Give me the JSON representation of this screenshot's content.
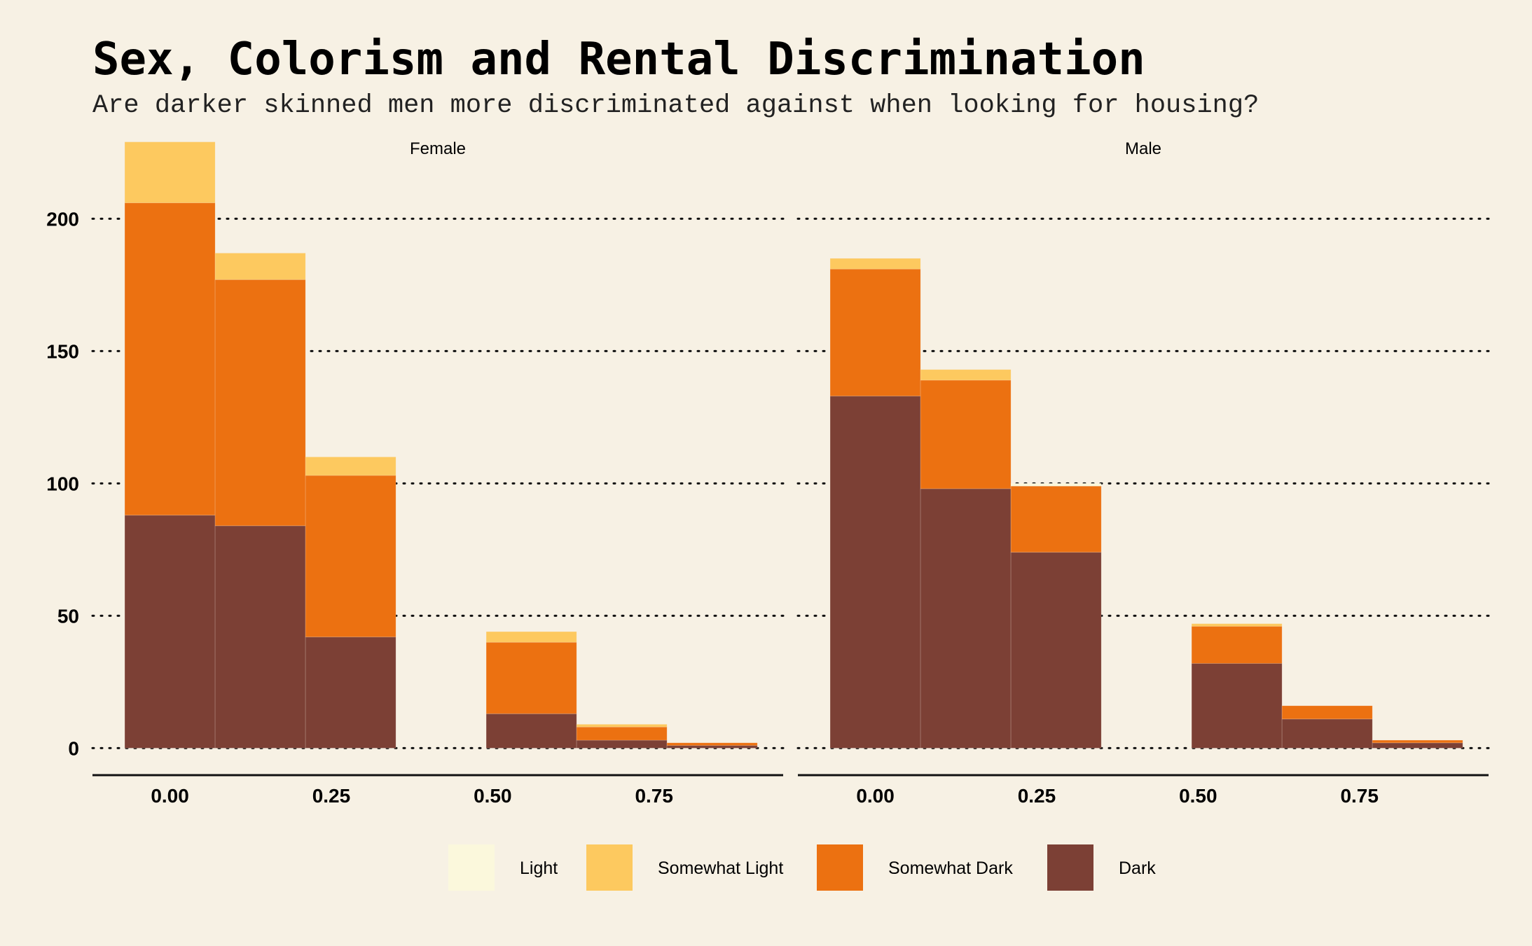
{
  "chart_data": {
    "type": "bar",
    "title": "Sex, Colorism and Rental Discrimination",
    "subtitle": "Are darker skinned men more discriminated against when looking for housing?",
    "xlabel": "",
    "ylabel": "",
    "xlim": [
      -0.12,
      0.95
    ],
    "ylim": [
      -11,
      235
    ],
    "x_ticks": [
      "0.00",
      "0.25",
      "0.50",
      "0.75"
    ],
    "y_ticks": [
      "0",
      "50",
      "100",
      "150",
      "200"
    ],
    "grid": "horizontal dotted",
    "legend_position": "bottom",
    "bin_edges": [
      -0.07,
      0.07,
      0.21,
      0.35,
      0.49,
      0.63,
      0.77,
      0.91
    ],
    "stacking": "stacked",
    "series": [
      {
        "name": "Light",
        "color": "#fbf8dc"
      },
      {
        "name": "Somewhat Light",
        "color": "#fdc95f"
      },
      {
        "name": "Somewhat Dark",
        "color": "#ec7111"
      },
      {
        "name": "Dark",
        "color": "#7c4035"
      }
    ],
    "facets": [
      {
        "label": "Female",
        "counts": {
          "Light": [
            0,
            0,
            0,
            0,
            0,
            0,
            0
          ],
          "Somewhat Light": [
            23,
            10,
            7,
            0,
            4,
            1,
            0
          ],
          "Somewhat Dark": [
            118,
            93,
            61,
            0,
            27,
            5,
            1
          ],
          "Dark": [
            88,
            84,
            42,
            0,
            13,
            3,
            1
          ]
        }
      },
      {
        "label": "Male",
        "counts": {
          "Light": [
            0,
            0,
            1,
            0,
            0,
            0,
            0
          ],
          "Somewhat Light": [
            4,
            4,
            0,
            0,
            1,
            0,
            0
          ],
          "Somewhat Dark": [
            48,
            41,
            25,
            0,
            14,
            5,
            1
          ],
          "Dark": [
            133,
            98,
            74,
            0,
            32,
            11,
            2
          ]
        }
      }
    ]
  }
}
